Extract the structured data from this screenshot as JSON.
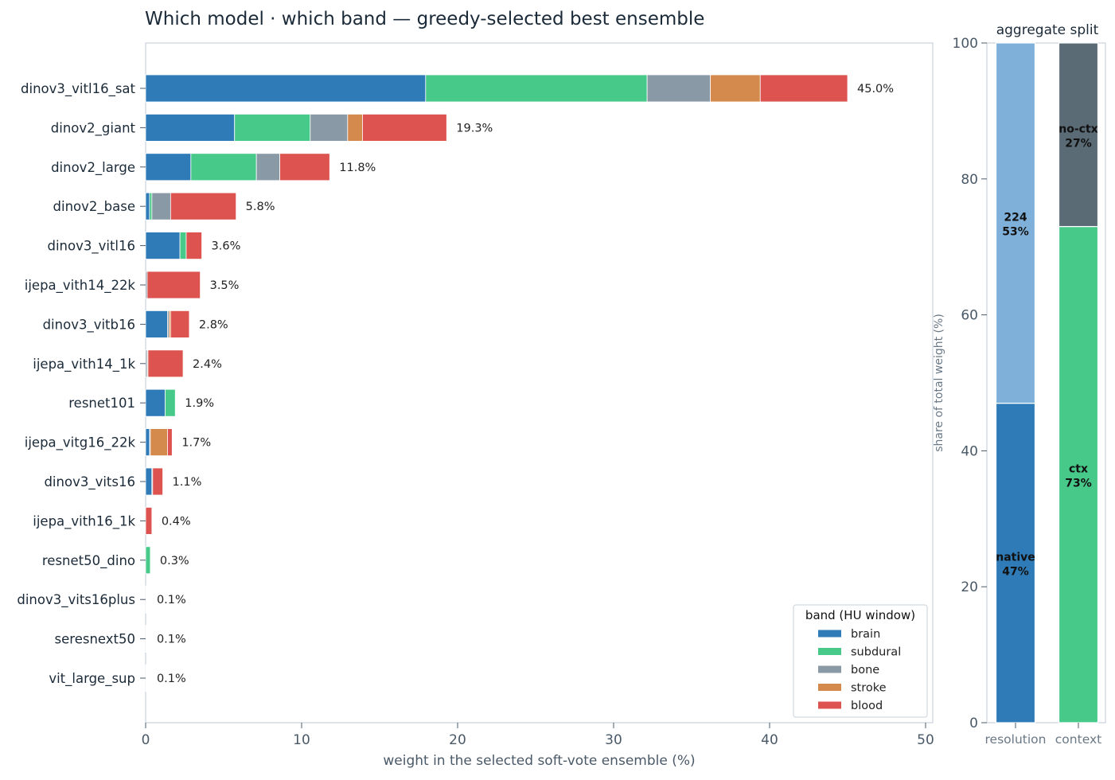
{
  "chart_data": [
    {
      "type": "bar",
      "orientation": "horizontal",
      "stacked": true,
      "title": "Which model · which band — greedy-selected best ensemble",
      "xlabel": "weight in the selected soft-vote ensemble (%)",
      "ylabel": "",
      "xlim": [
        0,
        50
      ],
      "xticks": [
        0,
        10,
        20,
        30,
        40,
        50
      ],
      "grid": false,
      "legend": {
        "title": "band (HU window)",
        "placement": "lower-right"
      },
      "categories": [
        "dinov3_vitl16_sat",
        "dinov2_giant",
        "dinov2_large",
        "dinov2_base",
        "dinov3_vitl16",
        "ijepa_vith14_22k",
        "dinov3_vitb16",
        "ijepa_vith14_1k",
        "resnet101",
        "ijepa_vitg16_22k",
        "dinov3_vits16",
        "ijepa_vith16_1k",
        "resnet50_dino",
        "dinov3_vits16plus",
        "seresnext50",
        "vit_large_sup"
      ],
      "totals": [
        "45.0%",
        "19.3%",
        "11.8%",
        "5.8%",
        "3.6%",
        "3.5%",
        "2.8%",
        "2.4%",
        "1.9%",
        "1.7%",
        "1.1%",
        "0.4%",
        "0.3%",
        "0.1%",
        "0.1%",
        "0.1%"
      ],
      "series": [
        {
          "name": "brain",
          "color": "#2e7bb7",
          "values": [
            17.95,
            5.7,
            2.9,
            0.25,
            2.2,
            0,
            1.4,
            0,
            1.25,
            0.25,
            0.4,
            0,
            0,
            0.03,
            0.04,
            0.03
          ]
        },
        {
          "name": "subdural",
          "color": "#47c98a",
          "values": [
            14.2,
            4.85,
            4.2,
            0.15,
            0.4,
            0,
            0,
            0,
            0.65,
            0,
            0,
            0,
            0.3,
            0.03,
            0.03,
            0.03
          ]
        },
        {
          "name": "bone",
          "color": "#8a99a6",
          "values": [
            4.05,
            2.4,
            1.5,
            1.2,
            0,
            0.1,
            0.1,
            0.1,
            0,
            0.05,
            0.05,
            0,
            0,
            0.04,
            0.03,
            0.04
          ]
        },
        {
          "name": "stroke",
          "color": "#d4894d",
          "values": [
            3.2,
            0.95,
            0,
            0,
            0,
            0,
            0.1,
            0.05,
            0,
            1.1,
            0,
            0,
            0,
            0,
            0,
            0
          ]
        },
        {
          "name": "blood",
          "color": "#dc5350",
          "values": [
            5.6,
            5.4,
            3.2,
            4.2,
            1.0,
            3.4,
            1.2,
            2.25,
            0,
            0.3,
            0.65,
            0.4,
            0,
            0,
            0,
            0
          ]
        }
      ]
    },
    {
      "type": "bar",
      "stacked": true,
      "title": "aggregate split",
      "ylabel": "share of total weight (%)",
      "ylim": [
        0,
        100
      ],
      "yticks": [
        0,
        20,
        40,
        60,
        80,
        100
      ],
      "categories": [
        "resolution",
        "context"
      ],
      "stacks": [
        {
          "category": "resolution",
          "segments": [
            {
              "name": "native",
              "value": 47,
              "label": "47%",
              "color": "#2e7bb7"
            },
            {
              "name": "224",
              "value": 53,
              "label": "53%",
              "color": "#7fb0d9"
            }
          ]
        },
        {
          "category": "context",
          "segments": [
            {
              "name": "ctx",
              "value": 73,
              "label": "73%",
              "color": "#47c98a"
            },
            {
              "name": "no-ctx",
              "value": 27,
              "label": "27%",
              "color": "#5a6b76"
            }
          ]
        }
      ]
    }
  ]
}
